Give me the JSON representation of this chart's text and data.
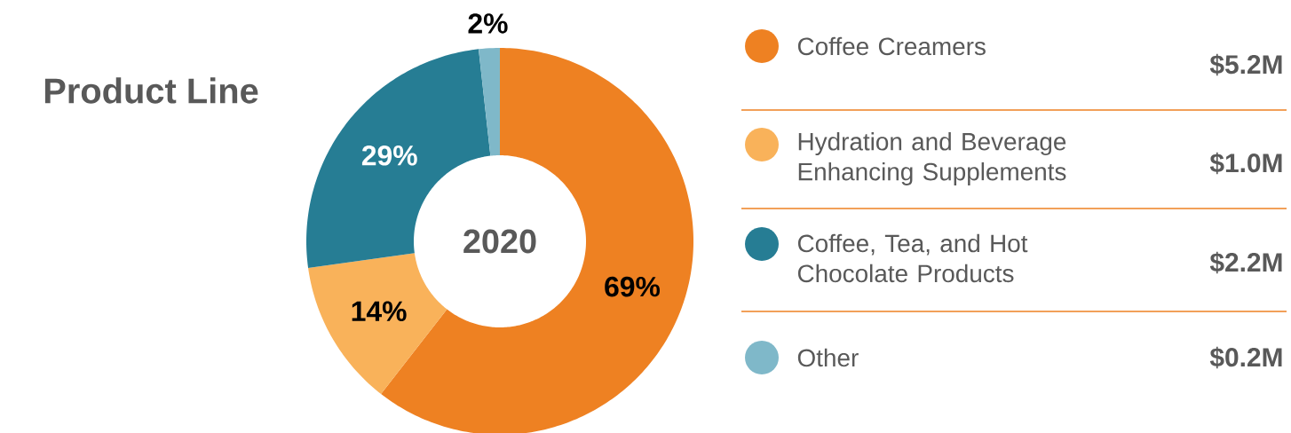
{
  "chart_data": {
    "type": "donut",
    "title": "Product Line",
    "subtitle": "2020",
    "categories": [
      "Coffee Creamers",
      "Hydration and Beverage Enhancing Supplements",
      "Coffee, Tea, and Hot Chocolate Products",
      "Other"
    ],
    "values": [
      69,
      14,
      29,
      2
    ],
    "colors": [
      "#ee8122",
      "#f9b25a",
      "#267d94",
      "#7fb8c9"
    ],
    "value_labels": [
      "69%",
      "14%",
      "29%",
      "2%"
    ],
    "annotations": [
      "$5.2M",
      "$1.0M",
      "$2.2M",
      "$0.2M"
    ],
    "legend": "right"
  }
}
